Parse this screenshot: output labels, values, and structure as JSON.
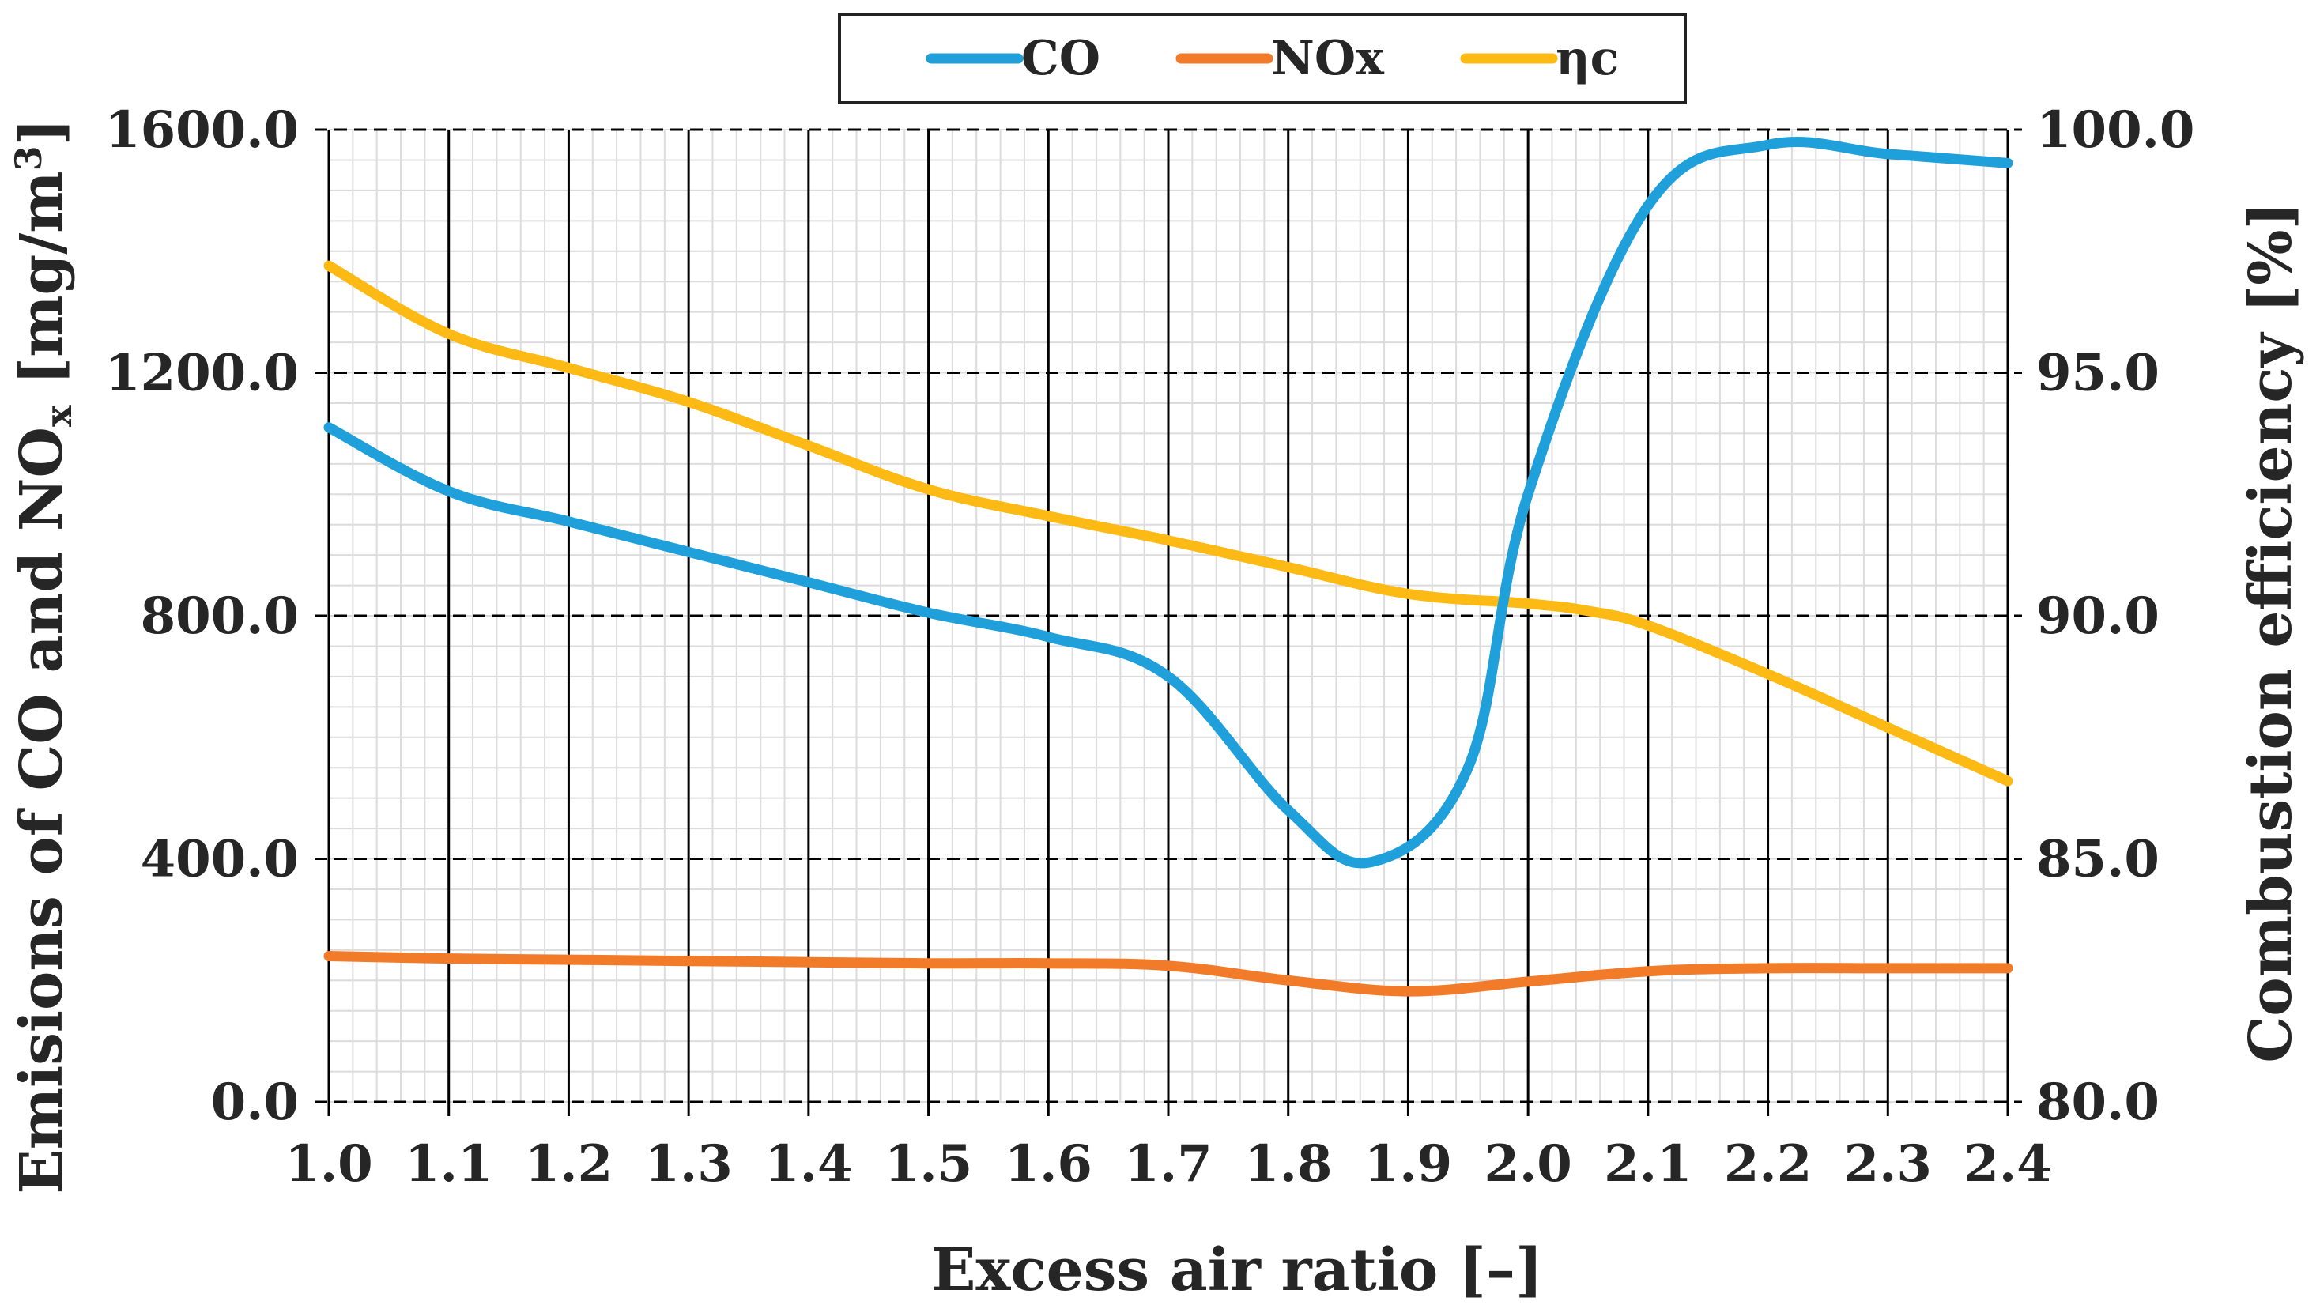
{
  "chart_data": {
    "type": "line",
    "title": "",
    "xlabel": "Excess air ratio [–]",
    "ylabel_left_main": "Emisions of CO and NO",
    "ylabel_left_sub": "x",
    "ylabel_left_unit": " [mg/m",
    "ylabel_left_sup": "3",
    "ylabel_left_close": "]",
    "ylabel_right": "Combustion efficiency [%]",
    "xlim": [
      1.0,
      2.4
    ],
    "ylim_left": [
      0,
      1600
    ],
    "ylim_right": [
      80,
      100
    ],
    "x_ticks": [
      "1.0",
      "1.1",
      "1.2",
      "1.3",
      "1.4",
      "1.5",
      "1.6",
      "1.7",
      "1.8",
      "1.9",
      "2.0",
      "2.1",
      "2.2",
      "2.3",
      "2.4"
    ],
    "y_left_ticks": [
      "0.0",
      "400.0",
      "800.0",
      "1200.0",
      "1600.0"
    ],
    "y_right_ticks": [
      "80.0",
      "85.0",
      "90.0",
      "95.0",
      "100.0"
    ],
    "grid": true,
    "legend_position": "top-center",
    "series": [
      {
        "name": "CO",
        "axis": "left",
        "color": "#1FA0DB",
        "x": [
          1.0,
          1.1,
          1.2,
          1.3,
          1.4,
          1.5,
          1.6,
          1.7,
          1.8,
          1.87,
          1.95,
          2.0,
          2.1,
          2.2,
          2.3,
          2.4
        ],
        "y": [
          1110,
          1005,
          955,
          905,
          855,
          805,
          765,
          700,
          480,
          395,
          550,
          1000,
          1475,
          1575,
          1560,
          1545
        ]
      },
      {
        "name": "NOx",
        "axis": "left",
        "color": "#F27B2A",
        "x": [
          1.0,
          1.1,
          1.2,
          1.3,
          1.4,
          1.5,
          1.6,
          1.7,
          1.8,
          1.9,
          2.0,
          2.1,
          2.2,
          2.3,
          2.4
        ],
        "y": [
          240,
          236,
          234,
          232,
          230,
          228,
          228,
          224,
          200,
          182,
          198,
          215,
          220,
          220,
          220
        ]
      },
      {
        "name": "ηc",
        "axis": "right",
        "color": "#FDBA15",
        "x": [
          1.0,
          1.1,
          1.2,
          1.3,
          1.4,
          1.5,
          1.6,
          1.7,
          1.8,
          1.9,
          2.0,
          2.05,
          2.1,
          2.2,
          2.3,
          2.4
        ],
        "y": [
          97.2,
          95.8,
          95.1,
          94.4,
          93.5,
          92.6,
          92.05,
          91.55,
          91.0,
          90.45,
          90.25,
          90.1,
          89.8,
          88.8,
          87.7,
          86.6
        ]
      }
    ]
  }
}
